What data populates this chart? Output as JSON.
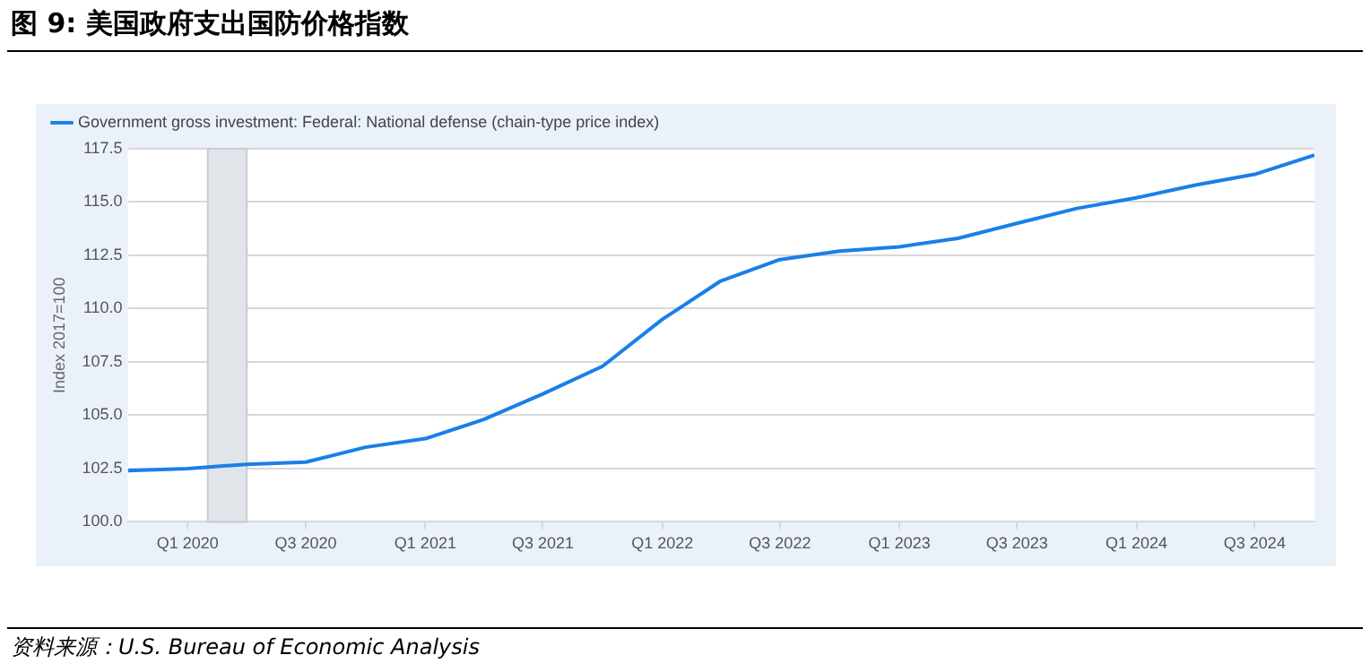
{
  "chart_data": {
    "type": "line",
    "title": "图 9: 美国政府支出国防价格指数",
    "ylabel": "Index 2017=100",
    "x": [
      "2019-10-01",
      "2020-01-01",
      "2020-04-01",
      "2020-07-01",
      "2020-10-01",
      "2021-01-01",
      "2021-04-01",
      "2021-07-01",
      "2021-10-01",
      "2022-01-01",
      "2022-04-01",
      "2022-07-01",
      "2022-10-01",
      "2023-01-01",
      "2023-04-01",
      "2023-07-01",
      "2023-10-01",
      "2024-01-01",
      "2024-04-01",
      "2024-07-01",
      "2024-10-01"
    ],
    "series": [
      {
        "name": "Government gross investment: Federal: National defense (chain-type price index)",
        "color": "#1a7fe8",
        "values": [
          102.4,
          102.5,
          102.7,
          102.8,
          103.5,
          103.9,
          104.8,
          106.0,
          107.3,
          109.5,
          111.3,
          112.3,
          112.7,
          112.9,
          113.3,
          114.0,
          114.7,
          115.2,
          115.8,
          116.3,
          117.2
        ]
      }
    ],
    "xlim": [
      "2019-10-01",
      "2024-10-01"
    ],
    "xticks": [
      {
        "value": "2020-01-01",
        "label": "Q1 2020"
      },
      {
        "value": "2020-07-01",
        "label": "Q3 2020"
      },
      {
        "value": "2021-01-01",
        "label": "Q1 2021"
      },
      {
        "value": "2021-07-01",
        "label": "Q3 2021"
      },
      {
        "value": "2022-01-01",
        "label": "Q1 2022"
      },
      {
        "value": "2022-07-01",
        "label": "Q3 2022"
      },
      {
        "value": "2023-01-01",
        "label": "Q1 2023"
      },
      {
        "value": "2023-07-01",
        "label": "Q3 2023"
      },
      {
        "value": "2024-01-01",
        "label": "Q1 2024"
      },
      {
        "value": "2024-07-01",
        "label": "Q3 2024"
      }
    ],
    "ylim": [
      100,
      117.5
    ],
    "yticks": [
      {
        "value": 100,
        "label": "100.0"
      },
      {
        "value": 102.5,
        "label": "102.5"
      },
      {
        "value": 105,
        "label": "105.0"
      },
      {
        "value": 107.5,
        "label": "107.5"
      },
      {
        "value": 110,
        "label": "110.0"
      },
      {
        "value": 112.5,
        "label": "112.5"
      },
      {
        "value": 115,
        "label": "115.0"
      },
      {
        "value": 117.5,
        "label": "117.5"
      }
    ],
    "bands": [
      {
        "axis": "x",
        "from": "2020-02-01",
        "to": "2020-04-01",
        "color": "#e1e5ea"
      }
    ],
    "grid": "y",
    "legend": "top left",
    "marker": "none",
    "line_style": "solid",
    "annotations": [
      "资料来源：U.S. Bureau of Economic Analysis"
    ]
  }
}
